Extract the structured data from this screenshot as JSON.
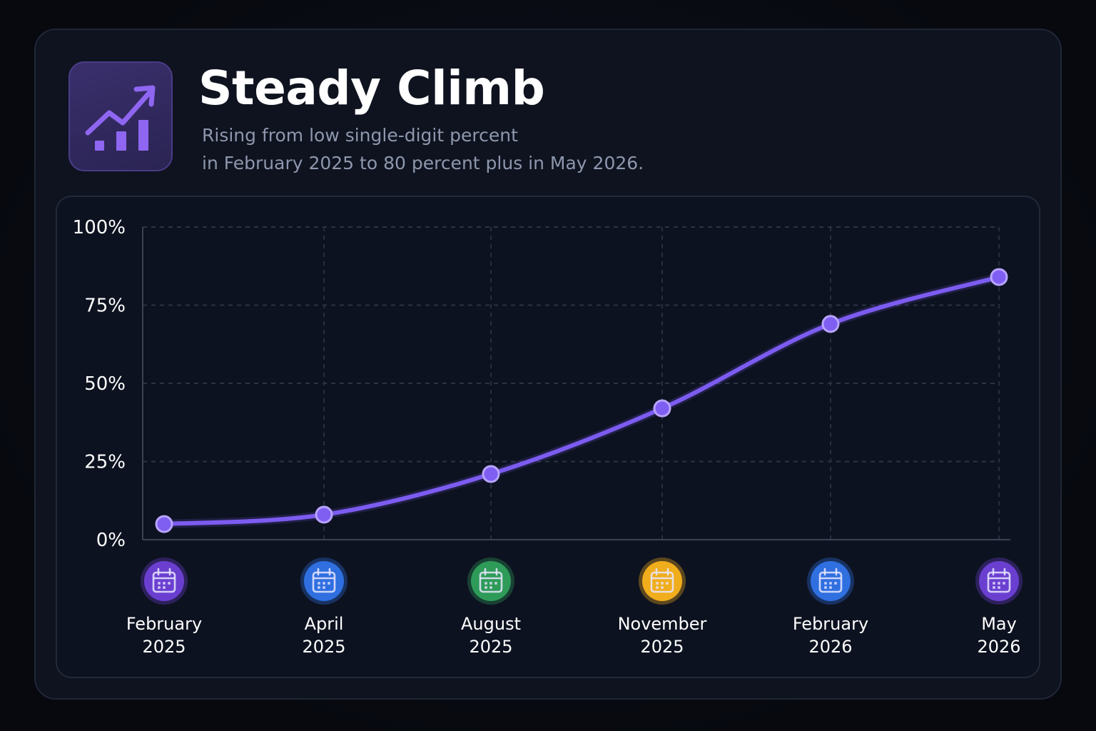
{
  "header": {
    "title": "Steady Climb",
    "subtitle_lines": [
      "Rising from low single-digit percent",
      "in February 2025 to 80 percent plus in May 2026."
    ],
    "logo_icon": "trending-up-bar-chart-icon"
  },
  "colors": {
    "accent": "#7c5cf0",
    "background": "#0e131f",
    "calendar_badges": [
      "#6a3fd0",
      "#2f6fe0",
      "#2e9b58",
      "#f0ad1c",
      "#2f6fe0",
      "#6a3fd0"
    ]
  },
  "chart_data": {
    "type": "line",
    "title": "",
    "xlabel": "",
    "ylabel": "",
    "categories": [
      [
        "February",
        "2025"
      ],
      [
        "April",
        "2025"
      ],
      [
        "August",
        "2025"
      ],
      [
        "November",
        "2025"
      ],
      [
        "February",
        "2026"
      ],
      [
        "May",
        "2026"
      ]
    ],
    "series": [
      {
        "values": [
          5,
          8,
          21,
          42,
          69,
          84
        ]
      }
    ],
    "ylim": [
      0,
      100
    ],
    "yticks": [
      0,
      25,
      50,
      75,
      100
    ],
    "ytick_labels": [
      "0%",
      "25%",
      "50%",
      "75%",
      "100%"
    ],
    "grid": true,
    "legend": "none",
    "category_icon": "calendar-icon"
  }
}
